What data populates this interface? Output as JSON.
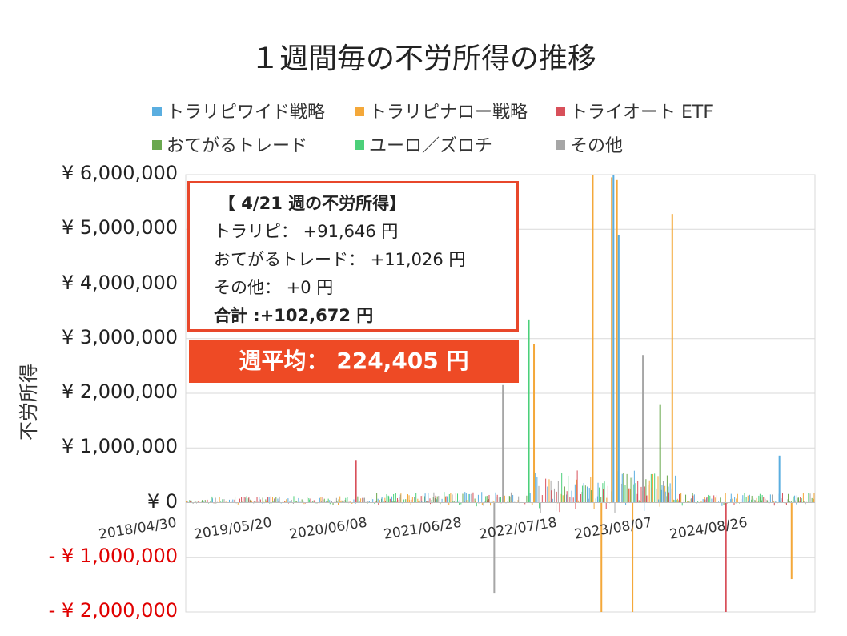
{
  "chart_data": {
    "type": "bar",
    "title": "１週間毎の不労所得の推移",
    "ylabel": "不労所得",
    "ylim": [
      -2000000,
      6000000
    ],
    "yticks": [
      {
        "value": 6000000,
        "label": "¥ 6,000,000"
      },
      {
        "value": 5000000,
        "label": "¥ 5,000,000"
      },
      {
        "value": 4000000,
        "label": "¥ 4,000,000"
      },
      {
        "value": 3000000,
        "label": "¥ 3,000,000"
      },
      {
        "value": 2000000,
        "label": "¥ 2,000,000"
      },
      {
        "value": 1000000,
        "label": "¥ 1,000,000"
      },
      {
        "value": 0,
        "label": "¥ 0"
      },
      {
        "value": -1000000,
        "label": "- ¥ 1,000,000"
      },
      {
        "value": -2000000,
        "label": "- ¥ 2,000,000"
      }
    ],
    "xticks": [
      "2018/04/30",
      "2019/05/20",
      "2020/06/08",
      "2021/06/28",
      "2022/07/18",
      "2023/08/07",
      "2024/08/26"
    ],
    "x_start": "2018/04/30",
    "x_end": "2025/04/21",
    "grid": true,
    "legend_position": "top",
    "series": [
      {
        "name": "トラリピワイド戦略",
        "color": "#5aaee0"
      },
      {
        "name": "トラリピナロー戦略",
        "color": "#f4a83a"
      },
      {
        "name": "トライオート ETF",
        "color": "#d8505a"
      },
      {
        "name": "おてがるトレード",
        "color": "#6aa84f"
      },
      {
        "name": "ユーロ／ズロチ",
        "color": "#4cd07a"
      },
      {
        "name": "その他",
        "color": "#a6a6a6"
      }
    ],
    "highlight_bars": [
      {
        "date": "2018/05-2020/03",
        "series": "mixed",
        "range": [
          -60000,
          150000
        ]
      },
      {
        "date": "2020/03/16",
        "series": "トライオート ETF",
        "value": 780000
      },
      {
        "date": "2021/11/01",
        "series": "その他",
        "value": 2150000
      },
      {
        "date": "2022/02/14",
        "series": "ユーロ／ズロチ",
        "value": 3350000
      },
      {
        "date": "2022/03/07",
        "series": "トラリピナロー戦略",
        "value": 2900000
      },
      {
        "date": "2022/10/31",
        "series": "トラリピナロー戦略",
        "value": 6000000
      },
      {
        "date": "2023/01/16",
        "series": "トラリピナロー戦略",
        "value": 5950000
      },
      {
        "date": "2023/01/23",
        "series": "トラリピワイド戦略",
        "value": 6000000
      },
      {
        "date": "2023/02/06",
        "series": "トラリピナロー戦略",
        "value": 5900000
      },
      {
        "date": "2023/02/13",
        "series": "トラリピワイド戦略",
        "value": 4900000
      },
      {
        "date": "2023/05/22",
        "series": "その他",
        "value": 2700000
      },
      {
        "date": "2023/09/18",
        "series": "トラリピナロー戦略",
        "value": 5280000
      },
      {
        "date": "2023/07/31",
        "series": "おてがるトレード",
        "value": 1800000
      },
      {
        "date": "2022/12/05",
        "series": "トラリピナロー戦略",
        "value": -2000000
      },
      {
        "date": "2023/04/10",
        "series": "トラリピナロー戦略",
        "value": -2000000
      },
      {
        "date": "2024/04/22",
        "series": "トライオート ETF",
        "value": -2000000
      },
      {
        "date": "2021/09/27",
        "series": "その他",
        "value": -1650000
      },
      {
        "date": "2025/01/13",
        "series": "トラリピナロー戦略",
        "value": -1400000
      },
      {
        "date": "2024/11/25",
        "series": "トラリピワイド戦略",
        "value": 860000
      }
    ]
  },
  "infobox": {
    "heading": "【 4/21 週の不労所得】",
    "lines": [
      "トラリピ： +91,646 円",
      "おてがるトレード： +11,026 円",
      "その他： +0 円"
    ],
    "total": "合計 :+102,672 円"
  },
  "average": "週平均： 224,405 円"
}
